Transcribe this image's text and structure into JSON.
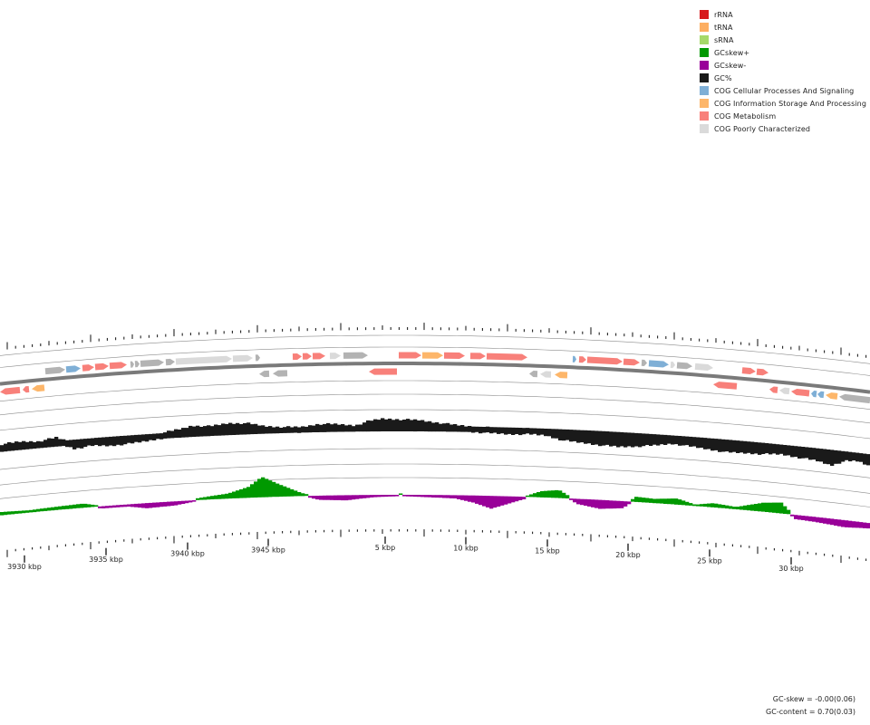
{
  "colors": {
    "rRNA": "#d7191c",
    "tRNA": "#fdae61",
    "sRNA": "#a6d96a",
    "gcskew_plus": "#009900",
    "gcskew_minus": "#990099",
    "gc_content": "#1a1a1a",
    "cog_cellular": "#7fafd6",
    "cog_information": "#fdb66a",
    "cog_metabolism": "#f8807a",
    "cog_poorly": "#dadada",
    "unassigned": "#b3b3b3"
  },
  "legend": [
    {
      "label": "rRNA",
      "color": "#d7191c"
    },
    {
      "label": "tRNA",
      "color": "#fdae61"
    },
    {
      "label": "sRNA",
      "color": "#a6d96a"
    },
    {
      "label": "GCskew+",
      "color": "#009900"
    },
    {
      "label": "GCskew-",
      "color": "#990099"
    },
    {
      "label": "GC%",
      "color": "#1a1a1a"
    },
    {
      "label": "COG Cellular Processes And Signaling",
      "color": "#7fafd6"
    },
    {
      "label": "COG Information Storage And Processing",
      "color": "#fdb66a"
    },
    {
      "label": "COG Metabolism",
      "color": "#f8807a"
    },
    {
      "label": "COG Poorly Characterized",
      "color": "#dadada"
    }
  ],
  "ticks": [
    {
      "label": "3930 kbp"
    },
    {
      "label": "3935 kbp"
    },
    {
      "label": "3940 kbp"
    },
    {
      "label": "3945 kbp"
    },
    {
      "label": "5 kbp"
    },
    {
      "label": "10 kbp"
    },
    {
      "label": "15 kbp"
    },
    {
      "label": "20 kbp"
    },
    {
      "label": "25 kbp"
    },
    {
      "label": "30 kbp"
    }
  ],
  "stats": {
    "gc_skew": "GC-skew = -0.00(0.06)",
    "gc_content": "GC-content = 0.70(0.03)"
  }
}
